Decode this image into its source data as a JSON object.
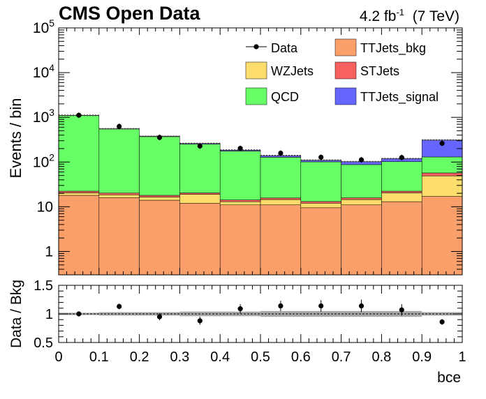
{
  "header": {
    "title": "CMS Open Data",
    "lumi_value": "4.2 fb",
    "lumi_exp": "-1",
    "energy": "(7 TeV)"
  },
  "colors": {
    "TTJets_bkg": "#fa9f6a",
    "WZJets": "#fcdc6a",
    "STJets": "#f86060",
    "QCD": "#66ff66",
    "TTJets_signal": "#6666ff",
    "uncertainty_band": "#a6a6a6"
  },
  "chart_data": [
    {
      "type": "bar",
      "stacked": true,
      "xlabel": "",
      "ylabel": "Events / bin",
      "yscale": "log",
      "ylim": [
        0.3,
        100000
      ],
      "xlim": [
        0,
        1
      ],
      "x_bin_edges": [
        0,
        0.1,
        0.2,
        0.3,
        0.4,
        0.5,
        0.6,
        0.7,
        0.8,
        0.9,
        1.0
      ],
      "y_tick_labels": [
        "1",
        "10",
        "10^2",
        "10^3",
        "10^4",
        "10^5"
      ],
      "legend_placement": "top-right",
      "legend_entries": [
        "Data",
        "TTJets_bkg",
        "WZJets",
        "STJets",
        "QCD",
        "TTJets_signal"
      ],
      "series": [
        {
          "name": "TTJets_bkg",
          "values": [
            18,
            16,
            14,
            12,
            11,
            11,
            9.5,
            11,
            13,
            17
          ]
        },
        {
          "name": "WZJets",
          "values": [
            2.5,
            2.5,
            2.5,
            7,
            2,
            3.5,
            2.5,
            3.5,
            7.5,
            32
          ]
        },
        {
          "name": "STJets",
          "values": [
            1.8,
            1.7,
            1.5,
            1.4,
            1.2,
            1.2,
            1.1,
            1.3,
            1.8,
            8
          ]
        },
        {
          "name": "QCD",
          "values": [
            1080,
            530,
            352,
            230,
            162,
            112,
            88,
            72,
            80,
            73
          ]
        },
        {
          "name": "TTJets_signal",
          "values": [
            3,
            5,
            6,
            10,
            9,
            12,
            9,
            14,
            17,
            180
          ]
        }
      ],
      "data_points": {
        "name": "Data",
        "x": [
          0.05,
          0.15,
          0.25,
          0.35,
          0.45,
          0.55,
          0.65,
          0.75,
          0.85,
          0.95
        ],
        "y": [
          1115,
          625,
          355,
          228,
          202,
          158,
          128,
          112,
          126,
          262
        ]
      }
    },
    {
      "type": "scatter",
      "xlabel": "bce",
      "ylabel": "Data / Bkg",
      "xlim": [
        0,
        1
      ],
      "ylim": [
        0.5,
        1.5
      ],
      "x_tick_labels": [
        "0",
        "0.1",
        "0.2",
        "0.3",
        "0.4",
        "0.5",
        "0.6",
        "0.7",
        "0.8",
        "0.9",
        "1"
      ],
      "y_tick_labels": [
        "0.5",
        "1",
        "1.5"
      ],
      "reference_line": 1,
      "x": [
        0.05,
        0.15,
        0.25,
        0.35,
        0.45,
        0.55,
        0.65,
        0.75,
        0.85,
        0.95
      ],
      "y": [
        1.0,
        1.13,
        0.95,
        0.88,
        1.09,
        1.14,
        1.14,
        1.14,
        1.07,
        0.86
      ],
      "y_err": [
        0.03,
        0.05,
        0.06,
        0.07,
        0.08,
        0.09,
        0.1,
        0.11,
        0.1,
        0.05
      ],
      "band_halfwidth": [
        0.02,
        0.03,
        0.03,
        0.04,
        0.04,
        0.05,
        0.05,
        0.05,
        0.05,
        0.03
      ]
    }
  ]
}
